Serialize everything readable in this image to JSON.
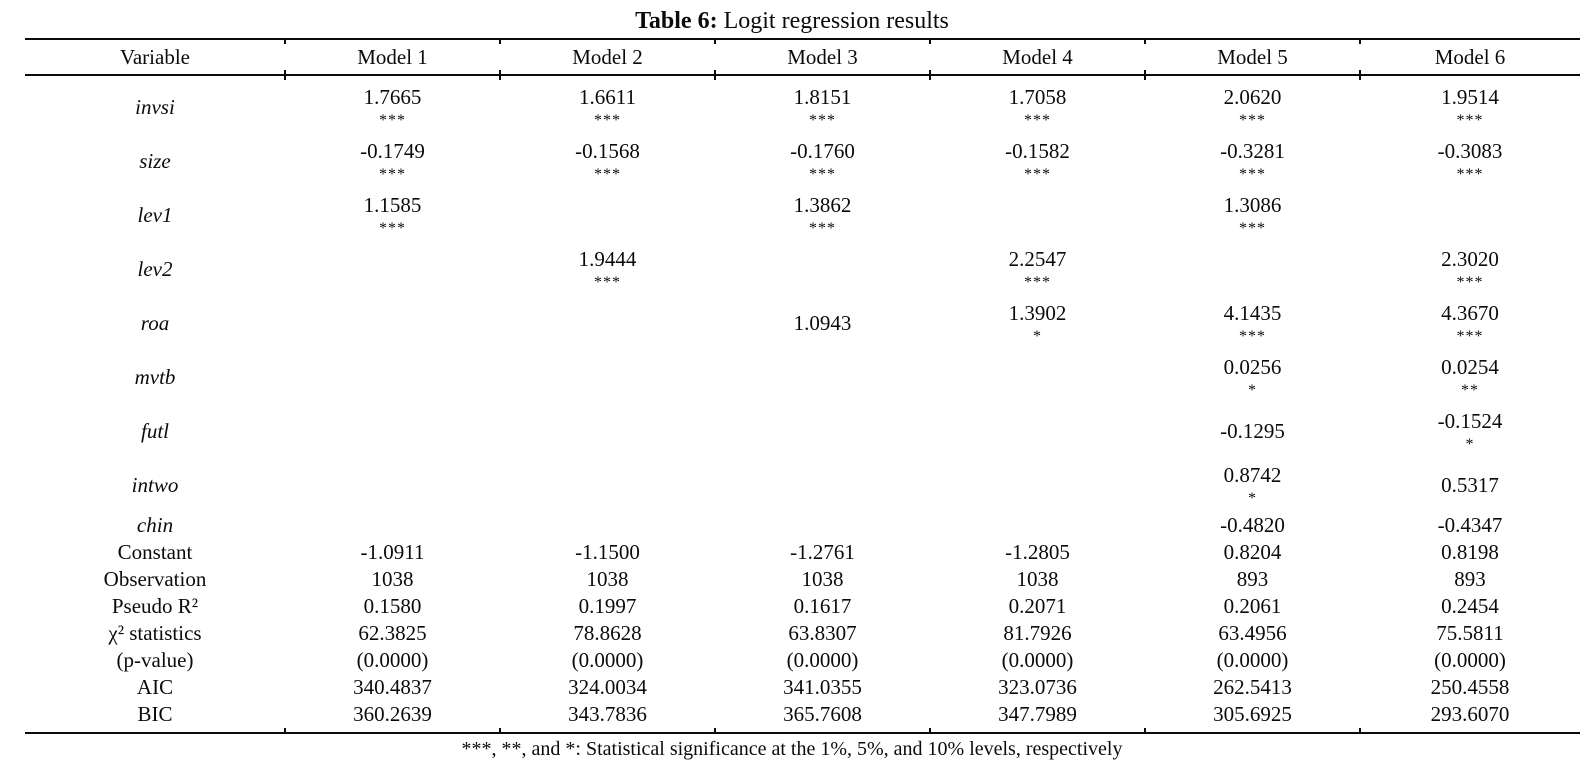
{
  "title": {
    "label": "Table 6:",
    "text": " Logit regression results"
  },
  "table": {
    "columns": [
      "Variable",
      "Model 1",
      "Model 2",
      "Model 3",
      "Model 4",
      "Model 5",
      "Model 6"
    ],
    "coef_rows": [
      {
        "variable": "invsi",
        "cells": [
          {
            "value": "1.7665",
            "stars": "***"
          },
          {
            "value": "1.6611",
            "stars": "***"
          },
          {
            "value": "1.8151",
            "stars": "***"
          },
          {
            "value": "1.7058",
            "stars": "***"
          },
          {
            "value": "2.0620",
            "stars": "***"
          },
          {
            "value": "1.9514",
            "stars": "***"
          }
        ]
      },
      {
        "variable": "size",
        "cells": [
          {
            "value": "-0.1749",
            "stars": "***"
          },
          {
            "value": "-0.1568",
            "stars": "***"
          },
          {
            "value": "-0.1760",
            "stars": "***"
          },
          {
            "value": "-0.1582",
            "stars": "***"
          },
          {
            "value": "-0.3281",
            "stars": "***"
          },
          {
            "value": "-0.3083",
            "stars": "***"
          }
        ]
      },
      {
        "variable": "lev1",
        "cells": [
          {
            "value": "1.1585",
            "stars": "***"
          },
          null,
          {
            "value": "1.3862",
            "stars": "***"
          },
          null,
          {
            "value": "1.3086",
            "stars": "***"
          },
          null
        ]
      },
      {
        "variable": "lev2",
        "cells": [
          null,
          {
            "value": "1.9444",
            "stars": "***"
          },
          null,
          {
            "value": "2.2547",
            "stars": "***"
          },
          null,
          {
            "value": "2.3020",
            "stars": "***"
          }
        ]
      },
      {
        "variable": "roa",
        "cells": [
          null,
          null,
          {
            "value": "1.0943",
            "stars": ""
          },
          {
            "value": "1.3902",
            "stars": "*"
          },
          {
            "value": "4.1435",
            "stars": "***"
          },
          {
            "value": "4.3670",
            "stars": "***"
          }
        ]
      },
      {
        "variable": "mvtb",
        "cells": [
          null,
          null,
          null,
          null,
          {
            "value": "0.0256",
            "stars": "*"
          },
          {
            "value": "0.0254",
            "stars": "**"
          }
        ]
      },
      {
        "variable": "futl",
        "cells": [
          null,
          null,
          null,
          null,
          {
            "value": "-0.1295",
            "stars": ""
          },
          {
            "value": "-0.1524",
            "stars": "*"
          }
        ]
      },
      {
        "variable": "intwo",
        "cells": [
          null,
          null,
          null,
          null,
          {
            "value": "0.8742",
            "stars": "*"
          },
          {
            "value": "0.5317",
            "stars": ""
          }
        ]
      },
      {
        "variable": "chin",
        "cells": [
          null,
          null,
          null,
          null,
          {
            "value": "-0.4820",
            "stars": ""
          },
          {
            "value": "-0.4347",
            "stars": ""
          }
        ]
      }
    ],
    "stat_rows": [
      {
        "label": "Constant",
        "values": [
          "-1.0911",
          "-1.1500",
          "-1.2761",
          "-1.2805",
          "0.8204",
          "0.8198"
        ]
      },
      {
        "label": "Observation",
        "values": [
          "1038",
          "1038",
          "1038",
          "1038",
          "893",
          "893"
        ]
      },
      {
        "label": "Pseudo R²",
        "values": [
          "0.1580",
          "0.1997",
          "0.1617",
          "0.2071",
          "0.2061",
          "0.2454"
        ]
      },
      {
        "label": "χ² statistics",
        "values": [
          "62.3825",
          "78.8628",
          "63.8307",
          "81.7926",
          "63.4956",
          "75.5811"
        ]
      },
      {
        "label": "(p-value)",
        "values": [
          "(0.0000)",
          "(0.0000)",
          "(0.0000)",
          "(0.0000)",
          "(0.0000)",
          "(0.0000)"
        ]
      },
      {
        "label": "AIC",
        "values": [
          "340.4837",
          "324.0034",
          "341.0355",
          "323.0736",
          "262.5413",
          "250.4558"
        ]
      },
      {
        "label": "BIC",
        "values": [
          "360.2639",
          "343.7836",
          "365.7608",
          "347.7989",
          "305.6925",
          "293.6070"
        ]
      }
    ]
  },
  "footnote": "***, **, and *: Statistical significance at the 1%, 5%, and 10% levels, respectively"
}
